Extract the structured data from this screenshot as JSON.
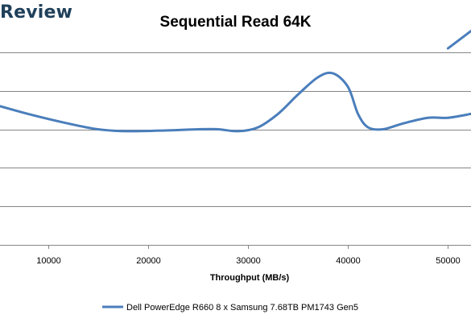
{
  "brand": {
    "text": "Review"
  },
  "colors": {
    "series": "#4a7ebb",
    "grid": "#868686",
    "brand": "#20405a"
  },
  "chart_data": {
    "type": "line",
    "title": "Sequential Read 64K",
    "xlabel": "Throughput (MB/s)",
    "ylabel": "",
    "xlim": [
      5200,
      52300
    ],
    "ylim": [
      0,
      6
    ],
    "x_ticks": [
      10000,
      20000,
      30000,
      40000,
      50000
    ],
    "y_grid_lines": [
      1,
      2,
      3,
      4,
      5
    ],
    "grid": true,
    "legend_position": "bottom",
    "series": [
      {
        "name": "Dell PowerEdge R660 8 x Samsung 7.68TB PM1743 Gen5",
        "segments": [
          {
            "x": [
              5200,
              8000,
              12000,
              15000,
              18000,
              22000,
              25000,
              27000,
              29000,
              31000,
              33000,
              35000,
              37000,
              38500,
              40000,
              41000,
              42000,
              43500,
              45500,
              48000,
              50000,
              52300
            ],
            "y": [
              3.6,
              3.4,
              3.15,
              3.0,
              2.95,
              2.97,
              3.0,
              3.0,
              2.95,
              3.05,
              3.4,
              3.9,
              4.35,
              4.45,
              4.1,
              3.4,
              3.05,
              3.0,
              3.15,
              3.3,
              3.3,
              3.4
            ]
          },
          {
            "x": [
              50000,
              52300
            ],
            "y": [
              5.1,
              5.55
            ]
          }
        ]
      }
    ]
  }
}
